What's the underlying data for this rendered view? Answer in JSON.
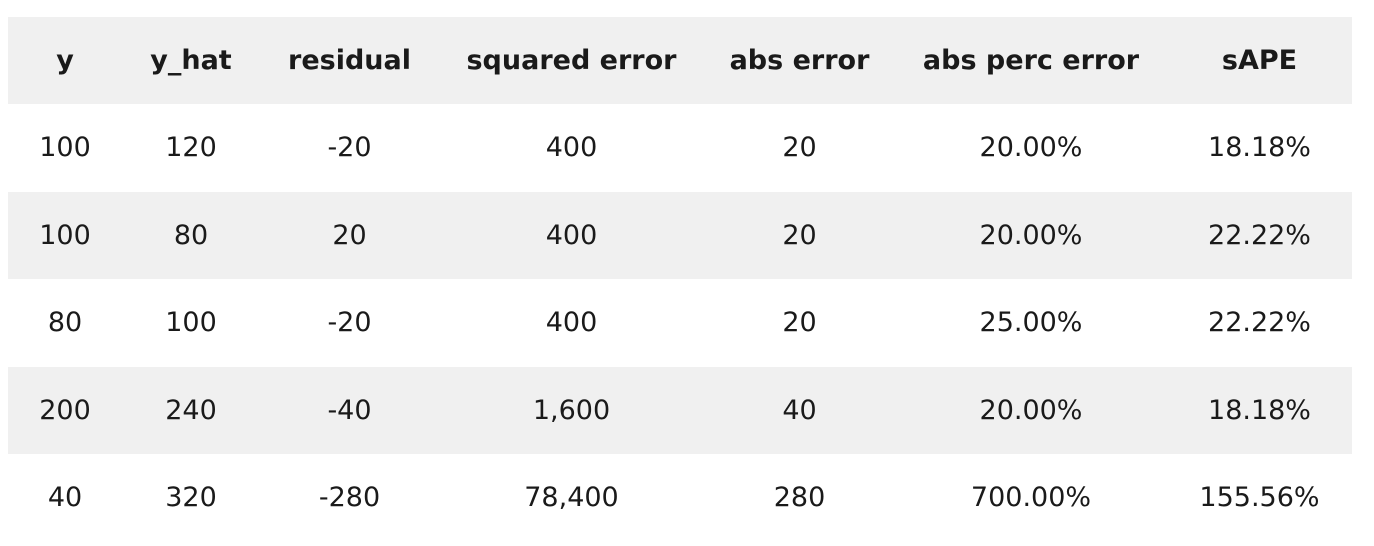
{
  "table": {
    "headers": [
      "y",
      "y_hat",
      "residual",
      "squared error",
      "abs error",
      "abs perc error",
      "sAPE"
    ],
    "rows": [
      [
        "100",
        "120",
        "-20",
        "400",
        "20",
        "20.00%",
        "18.18%"
      ],
      [
        "100",
        "80",
        "20",
        "400",
        "20",
        "20.00%",
        "22.22%"
      ],
      [
        "80",
        "100",
        "-20",
        "400",
        "20",
        "25.00%",
        "22.22%"
      ],
      [
        "200",
        "240",
        "-40",
        "1,600",
        "40",
        "20.00%",
        "18.18%"
      ],
      [
        "40",
        "320",
        "-280",
        "78,400",
        "280",
        "700.00%",
        "155.56%"
      ]
    ]
  },
  "colors": {
    "header_bg": "#f0f0f0",
    "stripe_bg": "#f0f0f0",
    "row_bg": "#ffffff",
    "text": "#1a1a1a"
  }
}
